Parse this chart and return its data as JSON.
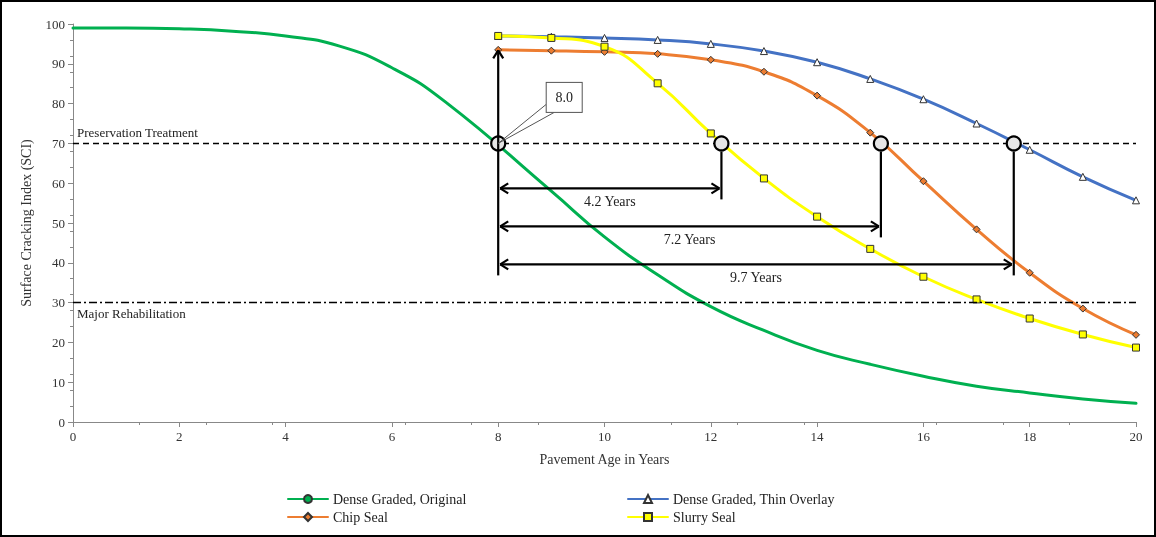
{
  "chart_data": {
    "type": "line",
    "xlabel": "Pavement Age in Years",
    "ylabel": "Surface Cracking Index (SCI)",
    "xlim": [
      0,
      20
    ],
    "xticks": [
      0,
      2,
      4,
      6,
      8,
      10,
      12,
      14,
      16,
      18,
      20
    ],
    "ylim": [
      0,
      100
    ],
    "yticks": [
      0,
      10,
      20,
      30,
      40,
      50,
      60,
      70,
      80,
      90,
      100
    ],
    "grid": false,
    "legend": "bottom",
    "series": [
      {
        "name": "Dense Graded, Original",
        "color": "#00b050",
        "marker": "none",
        "x": [
          0,
          1,
          2,
          3,
          4,
          5,
          6,
          7,
          9,
          10,
          11,
          12,
          13,
          14,
          15,
          16,
          17,
          18,
          19,
          20
        ],
        "values": [
          99,
          99,
          98.8,
          98.2,
          97,
          94.5,
          89,
          80.5,
          58,
          46.5,
          37,
          29,
          23,
          18,
          14.5,
          11.5,
          9,
          7.3,
          5.8,
          4.7
        ]
      },
      {
        "name": "Dense Graded, Thin Overlay",
        "color": "#4472c4",
        "marker": "triangle",
        "x": [
          8,
          9,
          10,
          11,
          12,
          13,
          14,
          15,
          16,
          17,
          18,
          19,
          20
        ],
        "values": [
          97,
          96.8,
          96.5,
          96,
          95,
          93.2,
          90.4,
          86.2,
          81.1,
          75,
          68.4,
          61.6,
          55.7
        ]
      },
      {
        "name": "Chip Seal",
        "color": "#ed7d31",
        "marker": "diamond",
        "x": [
          8,
          9,
          10,
          11,
          12,
          13,
          14,
          15,
          16,
          17,
          18,
          19,
          20
        ],
        "values": [
          93.5,
          93.3,
          93,
          92.5,
          91,
          88,
          82,
          72.7,
          60.5,
          48.4,
          37.5,
          28.5,
          21.9
        ]
      },
      {
        "name": "Slurry Seal",
        "color": "#ffff00",
        "marker": "square",
        "x": [
          8,
          9,
          10,
          11,
          12,
          13,
          14,
          15,
          16,
          17,
          18,
          19,
          20
        ],
        "values": [
          97,
          96.5,
          94.3,
          85.1,
          72.5,
          61.2,
          51.6,
          43.5,
          36.5,
          30.8,
          26,
          22,
          18.7
        ]
      },
      {
        "type": "scatter",
        "color": "#e6e6e6",
        "marker": "circle",
        "x": [
          8,
          12.2,
          15.2,
          17.7
        ],
        "values": [
          70,
          70,
          70,
          70
        ]
      }
    ],
    "ref_lines": [
      {
        "axis": "y",
        "value": 70,
        "label": "Preservation Treatment",
        "color": "#000000",
        "line_style": "dashed"
      },
      {
        "axis": "y",
        "value": 30,
        "label": "Major Rehabilitation",
        "color": "#000000",
        "line_style": "dashdot"
      }
    ],
    "annotations": [
      {
        "text": "8.0",
        "x": 8,
        "y": 70
      },
      "4.2 Years",
      "7.2 Years",
      "9.7 Years"
    ]
  }
}
